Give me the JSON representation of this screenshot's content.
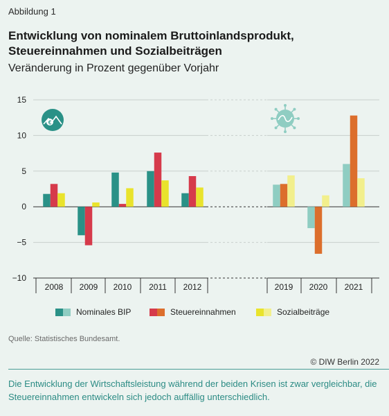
{
  "figure_label": "Abbildung 1",
  "title": "Entwicklung von nominalem Bruttoinlandsprodukt, Steuereinnahmen und Sozialbeiträgen",
  "subtitle": "Veränderung in Prozent gegenüber Vorjahr",
  "source": "Quelle: Statistisches Bundesamt.",
  "copyright": "© DIW Berlin 2022",
  "caption": "Die Entwicklung der Wirtschaftsleistung während der beiden Krisen ist zwar vergleichbar, die Steuereinnahmen entwickeln sich jedoch auffällig unterschiedlich.",
  "icons": {
    "left": "euro-mountain-icon",
    "right": "coronavirus-icon"
  },
  "colors": {
    "bip_crisis1": "#2a9187",
    "bip_crisis2": "#8fcdc2",
    "steuer_crisis1": "#d63a4b",
    "steuer_crisis2": "#dc6e2c",
    "sozial_crisis1": "#e9e32c",
    "sozial_crisis2": "#f2ef8c",
    "grid": "#c8cfcc",
    "axis": "#333333"
  },
  "chart_data": {
    "type": "bar",
    "categories": [
      "2008",
      "2009",
      "2010",
      "2011",
      "2012",
      "2019",
      "2020",
      "2021"
    ],
    "series": [
      {
        "name": "Nominales BIP",
        "values": [
          1.8,
          -4.0,
          4.8,
          5.0,
          1.9,
          3.1,
          -3.0,
          6.0
        ]
      },
      {
        "name": "Steuereinnahmen",
        "values": [
          3.2,
          -5.4,
          0.4,
          7.6,
          4.3,
          3.2,
          -6.6,
          12.8
        ]
      },
      {
        "name": "Sozialbeiträge",
        "values": [
          1.9,
          0.6,
          2.6,
          3.7,
          2.7,
          4.4,
          1.6,
          4.0
        ]
      }
    ],
    "yticks": [
      "15",
      "10",
      "5",
      "0",
      "−5",
      "−10"
    ],
    "ylim": [
      -10,
      15
    ],
    "grid": true,
    "legend": "bottom"
  }
}
